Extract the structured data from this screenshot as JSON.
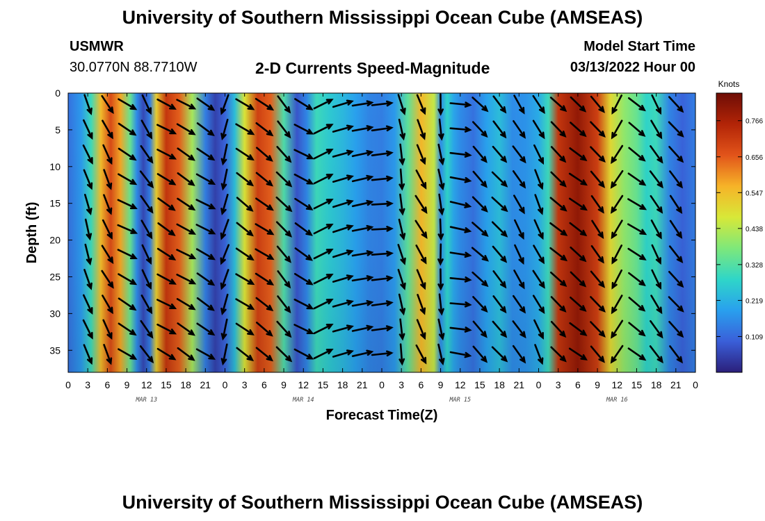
{
  "header": {
    "title": "University of Southern Mississippi Ocean Cube (AMSEAS)",
    "station": "USMWR",
    "coords": "30.0770N  88.7710W",
    "plot_title": "2-D Currents Speed-Magnitude",
    "start_label": "Model Start Time",
    "start_value": "03/13/2022 Hour 00"
  },
  "footer": {
    "title": "University of Southern Mississippi Ocean Cube (AMSEAS)"
  },
  "colors": {
    "colormap": [
      "#2b1f7a",
      "#3a5fd9",
      "#29a0ee",
      "#2fd6c8",
      "#7ee87a",
      "#d8e838",
      "#f6b328",
      "#e2541a",
      "#b22407",
      "#6e0d05"
    ]
  },
  "chart_data": {
    "type": "heatmap",
    "title": "2-D Currents Speed-Magnitude",
    "xlabel": "Forecast Time(Z)",
    "ylabel": "Depth (ft)",
    "x_range_hours": [
      0,
      96
    ],
    "y_range_ft": [
      0,
      38
    ],
    "x_tick_labels": [
      "0",
      "3",
      "6",
      "9",
      "12",
      "15",
      "18",
      "21",
      "0",
      "3",
      "6",
      "9",
      "12",
      "15",
      "18",
      "21",
      "0",
      "3",
      "6",
      "9",
      "12",
      "15",
      "18",
      "21",
      "0",
      "3",
      "6",
      "9",
      "12",
      "15",
      "18",
      "21",
      "0"
    ],
    "y_tick_labels": [
      "0",
      "5",
      "10",
      "15",
      "20",
      "25",
      "30",
      "35"
    ],
    "date_labels": [
      {
        "label": "MAR 13",
        "hour": 12
      },
      {
        "label": "MAR 14",
        "hour": 36
      },
      {
        "label": "MAR 15",
        "hour": 60
      },
      {
        "label": "MAR 16",
        "hour": 84
      }
    ],
    "colorbar": {
      "unit": "Knots",
      "range": [
        0,
        0.85
      ],
      "ticks": [
        "0.766",
        "0.656",
        "0.547",
        "0.438",
        "0.328",
        "0.219",
        "0.109"
      ]
    },
    "speed_profile": [
      {
        "h": 0,
        "v": 0.12
      },
      {
        "h": 2,
        "v": 0.18
      },
      {
        "h": 3.5,
        "v": 0.3
      },
      {
        "h": 5,
        "v": 0.55
      },
      {
        "h": 6.5,
        "v": 0.68
      },
      {
        "h": 8,
        "v": 0.58
      },
      {
        "h": 9.5,
        "v": 0.35
      },
      {
        "h": 10.5,
        "v": 0.16
      },
      {
        "h": 11.5,
        "v": 0.06
      },
      {
        "h": 12.5,
        "v": 0.14
      },
      {
        "h": 13.5,
        "v": 0.52
      },
      {
        "h": 15,
        "v": 0.72
      },
      {
        "h": 17,
        "v": 0.65
      },
      {
        "h": 19,
        "v": 0.42
      },
      {
        "h": 21,
        "v": 0.14
      },
      {
        "h": 22.5,
        "v": 0.05
      },
      {
        "h": 24,
        "v": 0.1
      },
      {
        "h": 25.5,
        "v": 0.24
      },
      {
        "h": 27,
        "v": 0.48
      },
      {
        "h": 29,
        "v": 0.7
      },
      {
        "h": 31,
        "v": 0.65
      },
      {
        "h": 33,
        "v": 0.32
      },
      {
        "h": 35,
        "v": 0.08
      },
      {
        "h": 36.5,
        "v": 0.15
      },
      {
        "h": 38,
        "v": 0.3
      },
      {
        "h": 40,
        "v": 0.26
      },
      {
        "h": 42,
        "v": 0.23
      },
      {
        "h": 44,
        "v": 0.19
      },
      {
        "h": 46,
        "v": 0.15
      },
      {
        "h": 48,
        "v": 0.14
      },
      {
        "h": 50,
        "v": 0.18
      },
      {
        "h": 52,
        "v": 0.34
      },
      {
        "h": 54,
        "v": 0.56
      },
      {
        "h": 56,
        "v": 0.45
      },
      {
        "h": 57,
        "v": 0.16
      },
      {
        "h": 58,
        "v": 0.28
      },
      {
        "h": 59,
        "v": 0.2
      },
      {
        "h": 60,
        "v": 0.16
      },
      {
        "h": 62,
        "v": 0.12
      },
      {
        "h": 64,
        "v": 0.19
      },
      {
        "h": 66,
        "v": 0.24
      },
      {
        "h": 68,
        "v": 0.16
      },
      {
        "h": 70,
        "v": 0.17
      },
      {
        "h": 72,
        "v": 0.21
      },
      {
        "h": 73.5,
        "v": 0.3
      },
      {
        "h": 75,
        "v": 0.72
      },
      {
        "h": 78,
        "v": 0.8
      },
      {
        "h": 81,
        "v": 0.7
      },
      {
        "h": 83,
        "v": 0.5
      },
      {
        "h": 85,
        "v": 0.4
      },
      {
        "h": 87,
        "v": 0.35
      },
      {
        "h": 88.5,
        "v": 0.28
      },
      {
        "h": 90,
        "v": 0.3
      },
      {
        "h": 92,
        "v": 0.15
      },
      {
        "h": 94,
        "v": 0.1
      },
      {
        "h": 96,
        "v": 0.14
      }
    ],
    "vectors": [
      {
        "h": 3,
        "dir": [
          0.35,
          1
        ]
      },
      {
        "h": 6,
        "dir": [
          0.5,
          1
        ]
      },
      {
        "h": 9,
        "dir": [
          1,
          0.55
        ]
      },
      {
        "h": 12,
        "dir": [
          0.6,
          1
        ]
      },
      {
        "h": 15,
        "dir": [
          1,
          0.6
        ]
      },
      {
        "h": 18,
        "dir": [
          1,
          0.6
        ]
      },
      {
        "h": 21,
        "dir": [
          1,
          0.6
        ]
      },
      {
        "h": 24,
        "dir": [
          -0.3,
          1
        ]
      },
      {
        "h": 27,
        "dir": [
          1,
          0.7
        ]
      },
      {
        "h": 30,
        "dir": [
          1,
          0.7
        ]
      },
      {
        "h": 33,
        "dir": [
          0.9,
          1
        ]
      },
      {
        "h": 36,
        "dir": [
          1,
          0.6
        ]
      },
      {
        "h": 39,
        "dir": [
          1,
          -0.5
        ]
      },
      {
        "h": 42,
        "dir": [
          1,
          -0.3
        ]
      },
      {
        "h": 45,
        "dir": [
          1,
          -0.2
        ]
      },
      {
        "h": 48,
        "dir": [
          1,
          -0.1
        ]
      },
      {
        "h": 51,
        "dir": [
          0.2,
          1
        ]
      },
      {
        "h": 54,
        "dir": [
          0.5,
          1
        ]
      },
      {
        "h": 57,
        "dir": [
          0.1,
          1
        ]
      },
      {
        "h": 60,
        "dir": [
          1,
          0.15
        ]
      },
      {
        "h": 63,
        "dir": [
          1,
          1
        ]
      },
      {
        "h": 66,
        "dir": [
          0.9,
          1
        ]
      },
      {
        "h": 69,
        "dir": [
          0.6,
          1
        ]
      },
      {
        "h": 72,
        "dir": [
          0.5,
          1
        ]
      },
      {
        "h": 75,
        "dir": [
          1,
          0.9
        ]
      },
      {
        "h": 78,
        "dir": [
          1,
          0.8
        ]
      },
      {
        "h": 81,
        "dir": [
          0.8,
          1
        ]
      },
      {
        "h": 84,
        "dir": [
          -0.6,
          1
        ]
      },
      {
        "h": 87,
        "dir": [
          1,
          0.7
        ]
      },
      {
        "h": 90,
        "dir": [
          0.6,
          1
        ]
      },
      {
        "h": 93,
        "dir": [
          0.8,
          1
        ]
      }
    ]
  }
}
